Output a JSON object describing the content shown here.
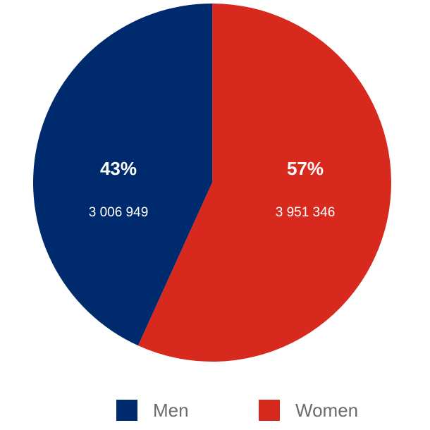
{
  "chart_data": {
    "type": "pie",
    "title": "",
    "slices": [
      {
        "name": "Men",
        "percent_label": "43%",
        "value": 3006949,
        "value_label": "3 006 949",
        "color": "#002a6e"
      },
      {
        "name": "Women",
        "percent_label": "57%",
        "value": 3951346,
        "value_label": "3 951 346",
        "color": "#d8291f"
      }
    ],
    "legend_position": "bottom"
  },
  "legend": {
    "men_label": "Men",
    "women_label": "Women"
  }
}
